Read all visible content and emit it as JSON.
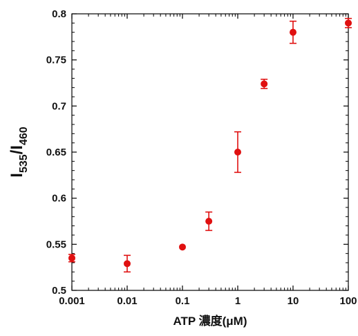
{
  "chart_data": {
    "type": "scatter",
    "title": "",
    "xlabel": "ATP 濃度(μM)",
    "ylabel": {
      "main": "I",
      "sub1": "535",
      "sep": "/I",
      "sub2": "460"
    },
    "x_scale": "log",
    "xlim": [
      0.001,
      100
    ],
    "ylim": [
      0.5,
      0.8
    ],
    "x_ticks": [
      0.001,
      0.01,
      0.1,
      1,
      10,
      100
    ],
    "x_tick_labels": [
      "0.001",
      "0.01",
      "0.1",
      "1",
      "10",
      "100"
    ],
    "y_ticks": [
      0.5,
      0.55,
      0.6,
      0.65,
      0.7,
      0.75,
      0.8
    ],
    "y_tick_labels": [
      "0.5",
      "0.55",
      "0.6",
      "0.65",
      "0.7",
      "0.75",
      "0.8"
    ],
    "grid": false,
    "legend": "none",
    "series": [
      {
        "color": "#e01010",
        "points": [
          {
            "x": 0.001,
            "y": 0.535,
            "err": 0.004
          },
          {
            "x": 0.01,
            "y": 0.529,
            "err": 0.009
          },
          {
            "x": 0.1,
            "y": 0.547,
            "err": 0.001
          },
          {
            "x": 0.3,
            "y": 0.575,
            "err": 0.01
          },
          {
            "x": 1,
            "y": 0.65,
            "err": 0.022
          },
          {
            "x": 3,
            "y": 0.724,
            "err": 0.005
          },
          {
            "x": 10,
            "y": 0.78,
            "err": 0.012
          },
          {
            "x": 100,
            "y": 0.79,
            "err": 0.005
          }
        ]
      }
    ]
  }
}
